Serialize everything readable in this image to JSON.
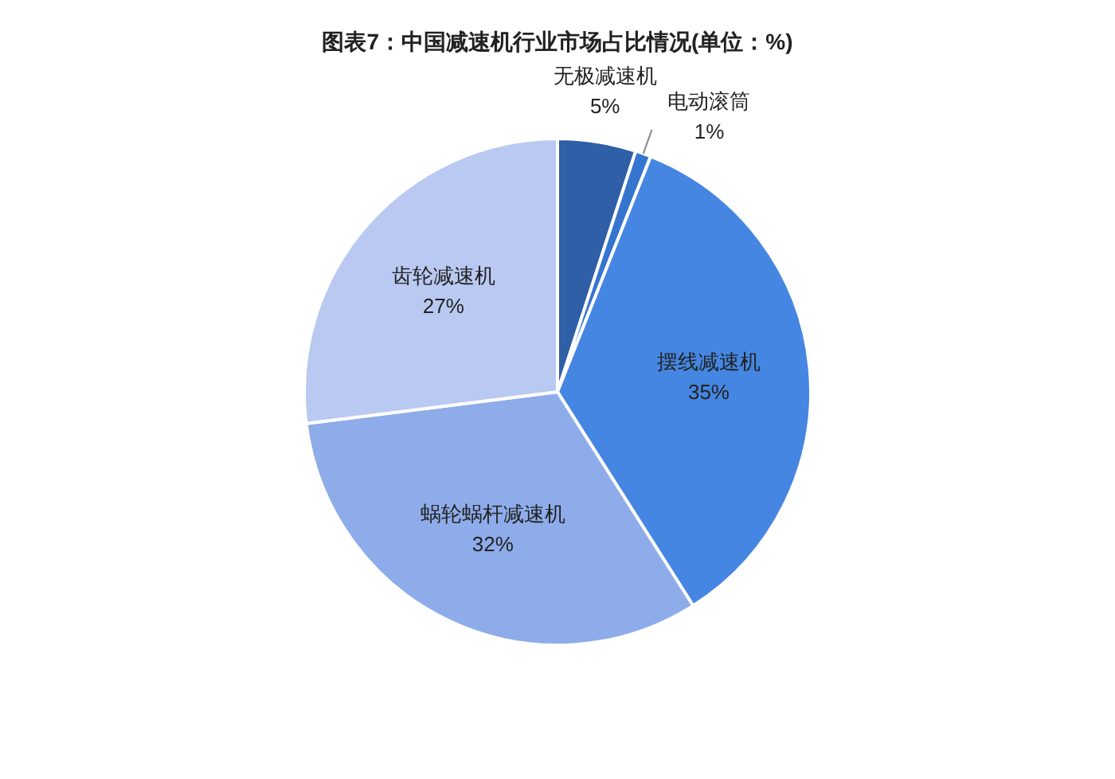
{
  "chart_data": {
    "type": "pie",
    "title": "图表7：中国减速机行业市场占比情况(单位：%)",
    "categories": [
      "无极减速机",
      "电动滚筒",
      "摆线减速机",
      "蜗轮蜗杆减速机",
      "齿轮减速机"
    ],
    "values": [
      5,
      1,
      35,
      32,
      27
    ],
    "colors": [
      "#2f5fa7",
      "#3575cf",
      "#4586e2",
      "#8eace9",
      "#b9c9f1"
    ],
    "value_labels": [
      "5%",
      "1%",
      "35%",
      "32%",
      "27%"
    ]
  }
}
